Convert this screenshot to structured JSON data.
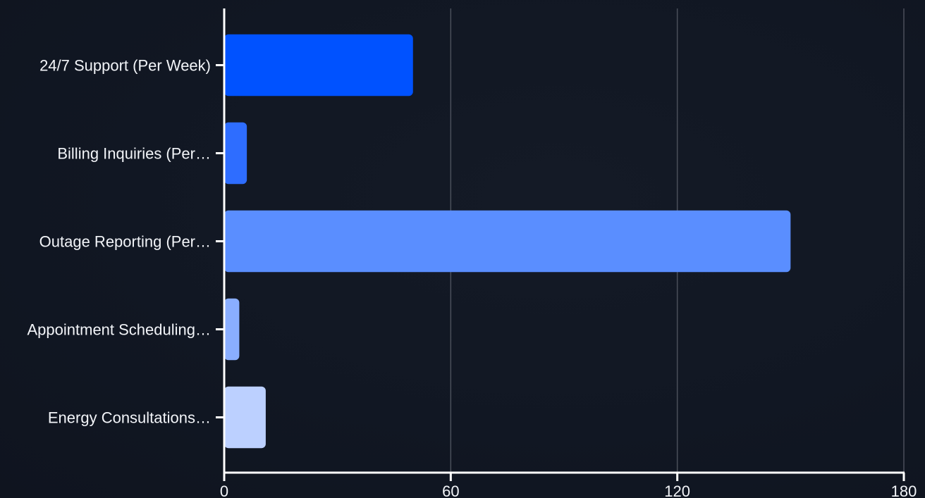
{
  "chart_data": {
    "type": "bar",
    "orientation": "horizontal",
    "categories": [
      "24/7 Support (Per Week)",
      "Billing Inquiries (Per…",
      "Outage Reporting (Per…",
      "Appointment Scheduling…",
      "Energy Consultations…"
    ],
    "values": [
      50,
      6,
      150,
      4,
      11
    ],
    "xlim": [
      0,
      180
    ],
    "xticks": [
      "0",
      "60",
      "120",
      "180"
    ],
    "grid": true,
    "colors": [
      "#0052ff",
      "#2e6dff",
      "#5a8eff",
      "#8aaeff",
      "#bcd0ff"
    ],
    "title": "",
    "xlabel": "",
    "ylabel": ""
  }
}
